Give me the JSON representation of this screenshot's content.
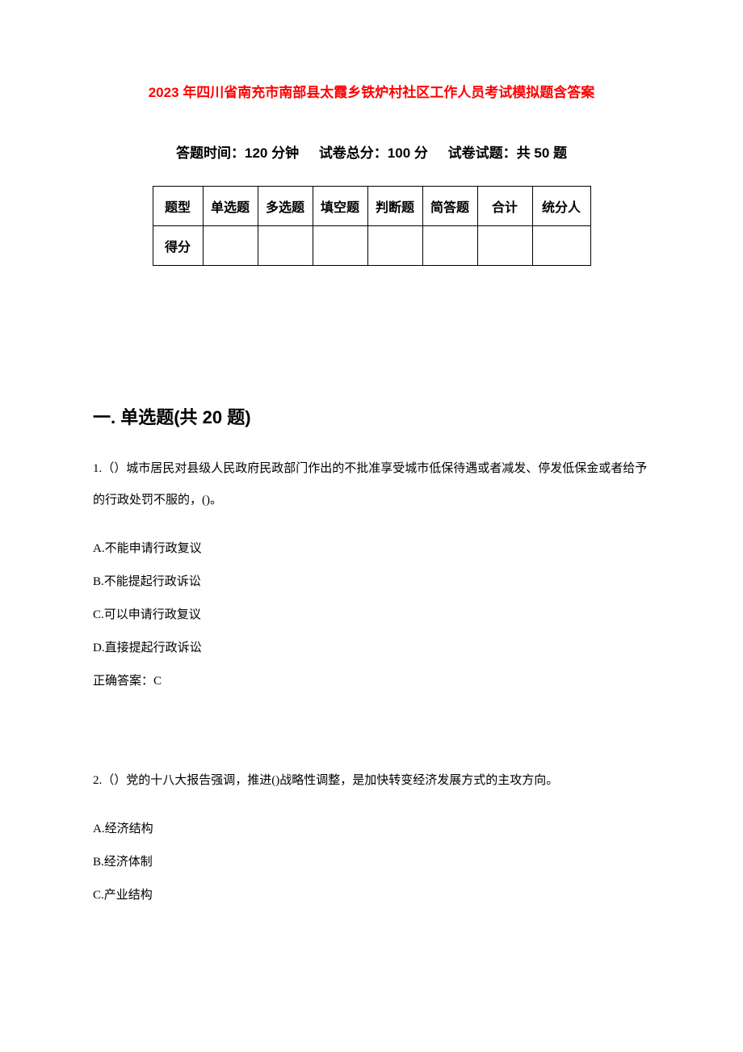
{
  "title": "2023 年四川省南充市南部县太霞乡铁炉村社区工作人员考试模拟题含答案",
  "subtitle": {
    "time": "答题时间：120 分钟",
    "total": "试卷总分：100 分",
    "count": "试卷试题：共 50 题"
  },
  "score_table": {
    "header_row": {
      "label": "题型",
      "types": [
        "单选题",
        "多选题",
        "填空题",
        "判断题",
        "简答题"
      ],
      "total": "合计",
      "scorer": "统分人"
    },
    "score_row_label": "得分",
    "border_color": "#000000",
    "font_size": 16
  },
  "section": {
    "title": "一. 单选题(共 20 题)"
  },
  "questions": [
    {
      "number": "1.",
      "text": "（）城市居民对县级人民政府民政部门作出的不批准享受城市低保待遇或者减发、停发低保金或者给予的行政处罚不服的，()。",
      "options": [
        "A.不能申请行政复议",
        "B.不能提起行政诉讼",
        "C.可以申请行政复议",
        "D.直接提起行政诉讼"
      ],
      "answer": "正确答案：C"
    },
    {
      "number": "2.",
      "text": "（）党的十八大报告强调，推进()战略性调整，是加快转变经济发展方式的主攻方向。",
      "options": [
        "A.经济结构",
        "B.经济体制",
        "C.产业结构"
      ]
    }
  ],
  "colors": {
    "title_color": "#ff0000",
    "text_color": "#000000",
    "background": "#ffffff"
  }
}
